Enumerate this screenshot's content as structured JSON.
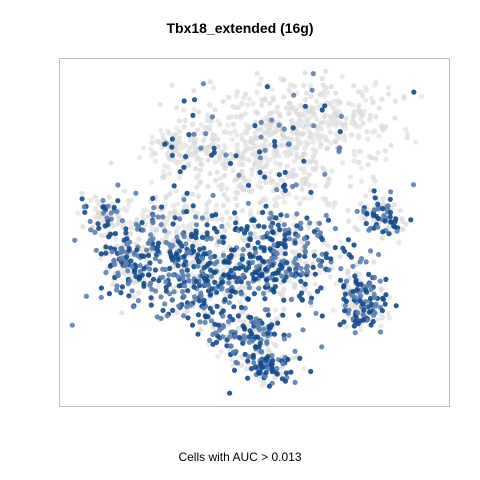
{
  "chart_data": {
    "type": "scatter",
    "title": "Tbx18_extended (16g)",
    "xlabel": "",
    "ylabel": "",
    "caption": "Cells with AUC > 0.013",
    "axes_visible": false,
    "grid": false,
    "legend": "none",
    "colors": {
      "low": "#d9d9d9",
      "high": "#124a8c",
      "mid": "#5b7fb0",
      "frame": "#bdbdbd"
    },
    "series": [
      {
        "kind": "background",
        "values": []
      },
      {
        "kind": "auc_above_threshold",
        "values": []
      }
    ],
    "clusters": [
      {
        "cx": 0.5,
        "cy": 0.27,
        "rx": 0.26,
        "ry": 0.2,
        "n": 520,
        "hi": 0.12
      },
      {
        "cx": 0.68,
        "cy": 0.16,
        "rx": 0.2,
        "ry": 0.12,
        "n": 230,
        "hi": 0.05
      },
      {
        "cx": 0.26,
        "cy": 0.48,
        "rx": 0.17,
        "ry": 0.12,
        "n": 200,
        "hi": 0.35
      },
      {
        "cx": 0.15,
        "cy": 0.58,
        "rx": 0.07,
        "ry": 0.08,
        "n": 110,
        "hi": 0.6
      },
      {
        "cx": 0.36,
        "cy": 0.63,
        "rx": 0.2,
        "ry": 0.14,
        "n": 420,
        "hi": 0.68
      },
      {
        "cx": 0.57,
        "cy": 0.58,
        "rx": 0.15,
        "ry": 0.14,
        "n": 330,
        "hi": 0.62
      },
      {
        "cx": 0.48,
        "cy": 0.8,
        "rx": 0.12,
        "ry": 0.07,
        "n": 150,
        "hi": 0.6
      },
      {
        "cx": 0.53,
        "cy": 0.9,
        "rx": 0.08,
        "ry": 0.05,
        "n": 110,
        "hi": 0.62
      },
      {
        "cx": 0.83,
        "cy": 0.45,
        "rx": 0.07,
        "ry": 0.06,
        "n": 110,
        "hi": 0.55
      },
      {
        "cx": 0.77,
        "cy": 0.68,
        "rx": 0.05,
        "ry": 0.1,
        "n": 90,
        "hi": 0.55
      },
      {
        "cx": 0.8,
        "cy": 0.72,
        "rx": 0.06,
        "ry": 0.07,
        "n": 90,
        "hi": 0.6
      },
      {
        "cx": 0.1,
        "cy": 0.45,
        "rx": 0.04,
        "ry": 0.05,
        "n": 50,
        "hi": 0.35
      },
      {
        "cx": 0.32,
        "cy": 0.25,
        "rx": 0.1,
        "ry": 0.06,
        "n": 80,
        "hi": 0.08
      }
    ]
  }
}
